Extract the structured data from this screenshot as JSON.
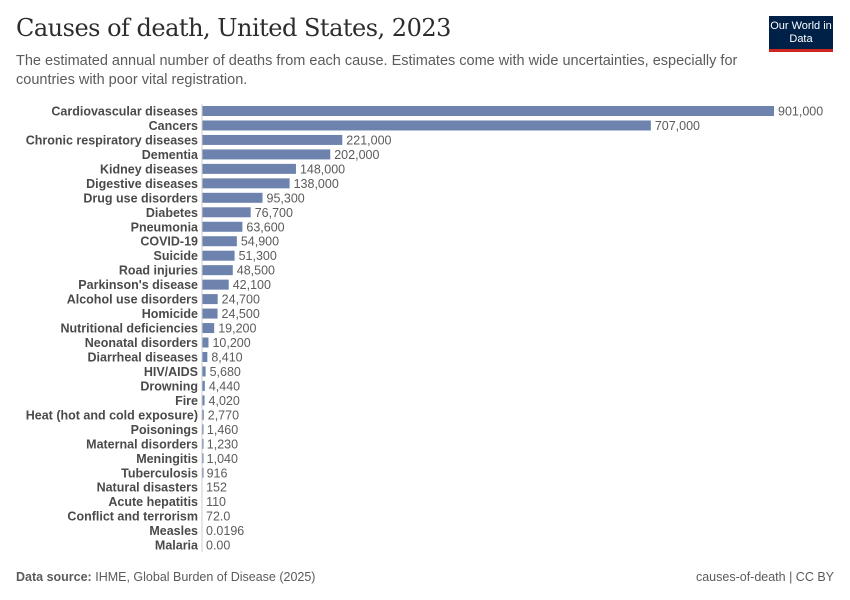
{
  "header": {
    "title": "Causes of death, United States, 2023",
    "subtitle": "The estimated annual number of deaths from each cause. Estimates come with wide uncertainties, especially for countries with poor vital registration.",
    "logo": "Our World in Data"
  },
  "footer": {
    "source_label": "Data source:",
    "source": "IHME, Global Burden of Disease (2025)",
    "right": "causes-of-death | CC BY"
  },
  "chart_data": {
    "type": "bar",
    "orientation": "horizontal",
    "bar_color": "#6d83ad",
    "categories": [
      "Cardiovascular diseases",
      "Cancers",
      "Chronic respiratory diseases",
      "Dementia",
      "Kidney diseases",
      "Digestive diseases",
      "Drug use disorders",
      "Diabetes",
      "Pneumonia",
      "COVID-19",
      "Suicide",
      "Road injuries",
      "Parkinson's disease",
      "Alcohol use disorders",
      "Homicide",
      "Nutritional deficiencies",
      "Neonatal disorders",
      "Diarrheal diseases",
      "HIV/AIDS",
      "Drowning",
      "Fire",
      "Heat (hot and cold exposure)",
      "Poisonings",
      "Maternal disorders",
      "Meningitis",
      "Tuberculosis",
      "Natural disasters",
      "Acute hepatitis",
      "Conflict and terrorism",
      "Measles",
      "Malaria"
    ],
    "values": [
      901000,
      707000,
      221000,
      202000,
      148000,
      138000,
      95300,
      76700,
      63600,
      54900,
      51300,
      48500,
      42100,
      24700,
      24500,
      19200,
      10200,
      8410,
      5680,
      4440,
      4020,
      2770,
      1460,
      1230,
      1040,
      916,
      152,
      110,
      72.0,
      0.0196,
      0.0
    ],
    "labels": [
      "901,000",
      "707,000",
      "221,000",
      "202,000",
      "148,000",
      "138,000",
      "95,300",
      "76,700",
      "63,600",
      "54,900",
      "51,300",
      "48,500",
      "42,100",
      "24,700",
      "24,500",
      "19,200",
      "10,200",
      "8,410",
      "5,680",
      "4,440",
      "4,020",
      "2,770",
      "1,460",
      "1,230",
      "1,040",
      "916",
      "152",
      "110",
      "72.0",
      "0.0196",
      "0.00"
    ]
  }
}
